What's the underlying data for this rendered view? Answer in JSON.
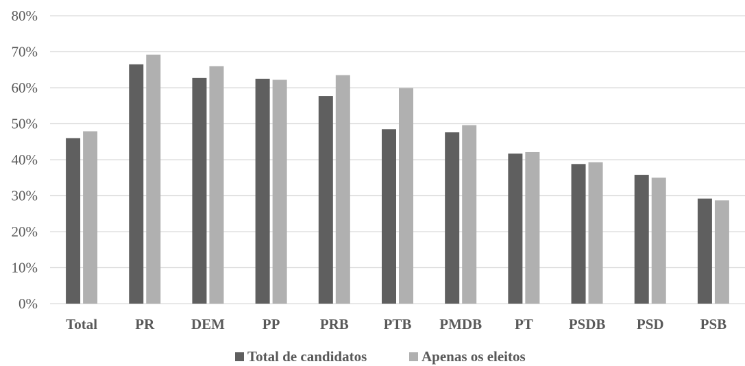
{
  "chart_data": {
    "type": "bar",
    "categories": [
      "Total",
      "PR",
      "DEM",
      "PP",
      "PRB",
      "PTB",
      "PMDB",
      "PT",
      "PSDB",
      "PSD",
      "PSB"
    ],
    "series": [
      {
        "name": "Total de candidatos",
        "color": "#5f5f5f",
        "values": [
          46,
          66.5,
          62.7,
          62.5,
          57.7,
          48.5,
          47.6,
          41.7,
          38.8,
          35.8,
          29.2
        ]
      },
      {
        "name": "Apenas os eleitos",
        "color": "#b0b0b0",
        "values": [
          47.9,
          69.2,
          66,
          62.2,
          63.5,
          59.9,
          49.6,
          42.1,
          39.3,
          35,
          28.7
        ]
      }
    ],
    "ylim": [
      0,
      80
    ],
    "yticks": [
      0,
      10,
      20,
      30,
      40,
      50,
      60,
      70,
      80
    ],
    "ytick_labels": [
      "0%",
      "10%",
      "20%",
      "30%",
      "40%",
      "50%",
      "60%",
      "70%",
      "80%"
    ],
    "grid": true,
    "legend_position": "bottom",
    "title": "",
    "xlabel": "",
    "ylabel": ""
  }
}
